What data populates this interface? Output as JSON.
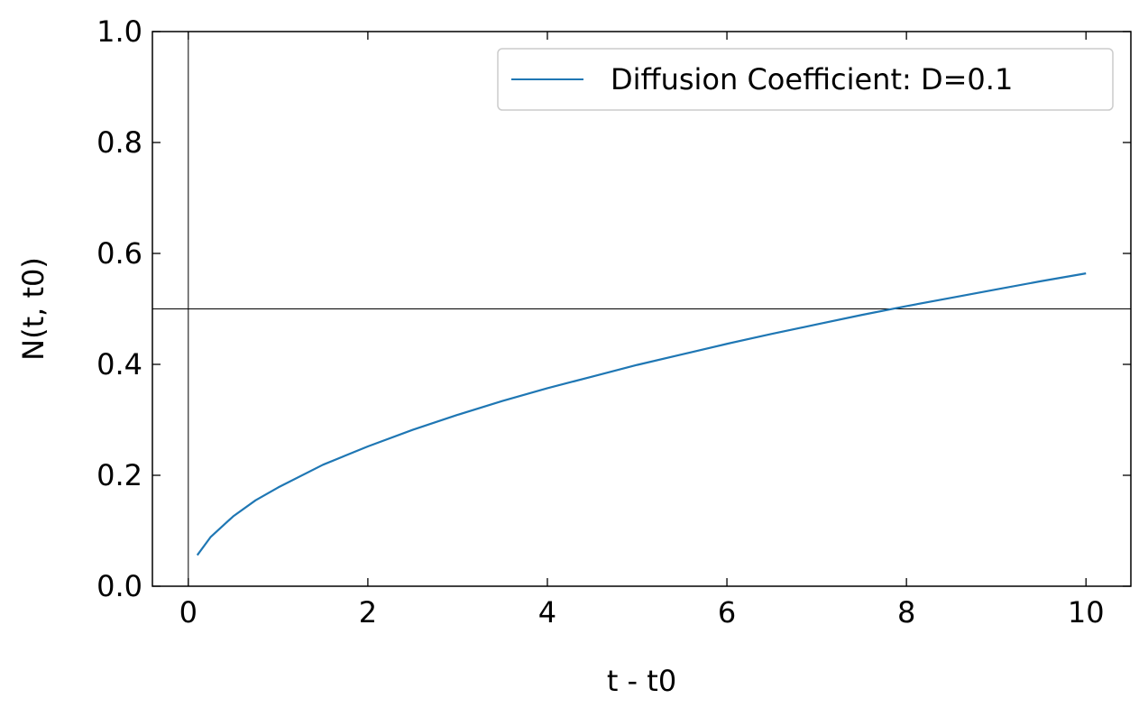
{
  "chart_data": {
    "type": "line",
    "title": "",
    "xlabel": "t - t0",
    "ylabel": "N(t, t0)",
    "xlim": [
      -0.4,
      10.5
    ],
    "ylim": [
      0.0,
      1.0
    ],
    "xticks": [
      0,
      2,
      4,
      6,
      8,
      10
    ],
    "xtick_labels": [
      "0",
      "2",
      "4",
      "6",
      "8",
      "10"
    ],
    "yticks": [
      0.0,
      0.2,
      0.4,
      0.6,
      0.8,
      1.0
    ],
    "ytick_labels": [
      "0.0",
      "0.2",
      "0.4",
      "0.6",
      "0.8",
      "1.0"
    ],
    "tick_direction": "in",
    "grid": false,
    "reference_lines": {
      "vertical_x": 0,
      "horizontal_y": 0.5
    },
    "legend": {
      "placement": "top-right"
    },
    "series": [
      {
        "name": "Diffusion Coefficient: D=0.1",
        "color": "#1f77b4",
        "x": [
          0.1,
          0.25,
          0.5,
          0.75,
          1,
          1.5,
          2,
          2.5,
          3,
          3.5,
          4,
          4.5,
          5,
          5.5,
          6,
          6.5,
          7,
          7.5,
          8,
          8.5,
          9,
          9.5,
          10
        ],
        "y": [
          0.056,
          0.089,
          0.126,
          0.155,
          0.178,
          0.219,
          0.252,
          0.282,
          0.309,
          0.334,
          0.357,
          0.378,
          0.399,
          0.418,
          0.437,
          0.455,
          0.472,
          0.489,
          0.505,
          0.52,
          0.535,
          0.55,
          0.564
        ]
      }
    ]
  }
}
